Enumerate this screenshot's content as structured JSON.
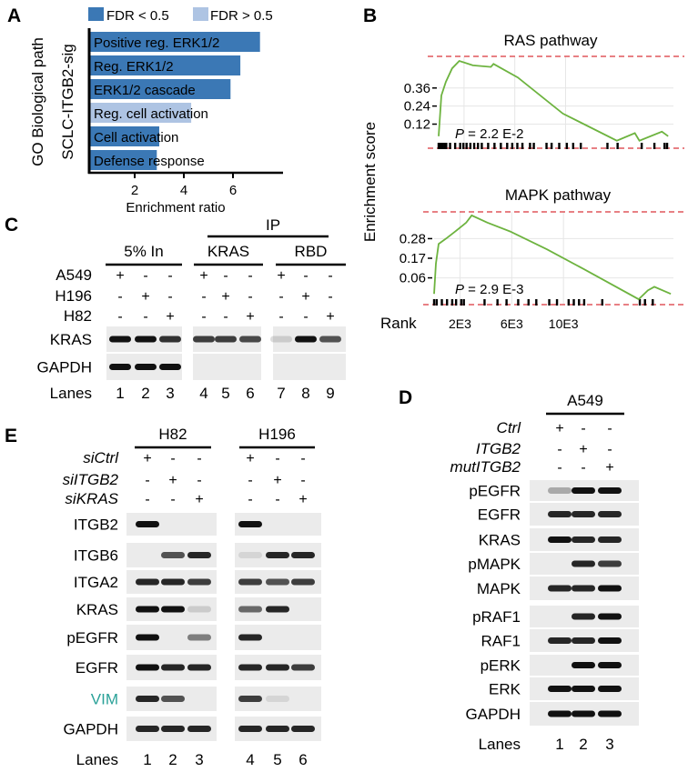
{
  "panels": {
    "A": {
      "letter": "A",
      "ylabel_line1": "GO Biological path",
      "ylabel_line2": "SCLC-ITGB2-sig",
      "legend": [
        {
          "label": "FDR < 0.5",
          "color": "#3b78b5"
        },
        {
          "label": "FDR > 0.5",
          "color": "#aec4e3"
        }
      ]
    },
    "B": {
      "letter": "B",
      "ylabel": "Enrichment score",
      "xlabel": "Rank"
    },
    "C": {
      "letter": "C",
      "ip_label": "IP",
      "groups": [
        "5% In",
        "KRAS",
        "RBD"
      ],
      "conditions": [
        {
          "label": "A549",
          "signs": [
            "+",
            "-",
            "-",
            "+",
            "-",
            "-",
            "+",
            "-",
            "-"
          ]
        },
        {
          "label": "H196",
          "signs": [
            "-",
            "+",
            "-",
            "-",
            "+",
            "-",
            "-",
            "+",
            "-"
          ]
        },
        {
          "label": "H82",
          "signs": [
            "-",
            "-",
            "+",
            "-",
            "-",
            "+",
            "-",
            "-",
            "+"
          ]
        }
      ],
      "blots": [
        {
          "label": "KRAS",
          "bands": [
            1,
            1,
            0.85,
            0.8,
            0.8,
            0.75,
            0.15,
            1,
            0.7
          ]
        },
        {
          "label": "GAPDH",
          "bands": [
            1,
            1,
            1,
            0,
            0,
            0,
            0,
            0,
            0
          ]
        }
      ],
      "lanes_label": "Lanes",
      "lanes": [
        "1",
        "2",
        "3",
        "4",
        "5",
        "6",
        "7",
        "8",
        "9"
      ]
    },
    "D": {
      "letter": "D",
      "groups": [
        "A549"
      ],
      "conditions": [
        {
          "label": "Ctrl",
          "signs": [
            "+",
            "-",
            "-"
          ]
        },
        {
          "label": "ITGB2",
          "signs": [
            "-",
            "+",
            "-"
          ]
        },
        {
          "label": "mutITGB2",
          "signs": [
            "-",
            "-",
            "+"
          ]
        }
      ],
      "blots": [
        {
          "label": "pEGFR",
          "bands": [
            0.3,
            1,
            1
          ]
        },
        {
          "label": "EGFR",
          "bands": [
            0.9,
            0.9,
            0.9
          ]
        },
        {
          "label": "KRAS",
          "bands": [
            1,
            0.9,
            0.9
          ]
        },
        {
          "label": "pMAPK",
          "bands": [
            0,
            0.9,
            0.8
          ]
        },
        {
          "label": "MAPK",
          "bands": [
            0.9,
            0.9,
            1
          ]
        },
        {
          "label": "pRAF1",
          "bands": [
            0,
            0.9,
            1
          ]
        },
        {
          "label": "RAF1",
          "bands": [
            0.9,
            0.9,
            1
          ]
        },
        {
          "label": "pERK",
          "bands": [
            0,
            1,
            1
          ]
        },
        {
          "label": "ERK",
          "bands": [
            1,
            1,
            1
          ]
        },
        {
          "label": "GAPDH",
          "bands": [
            1,
            1,
            1
          ]
        }
      ],
      "lanes_label": "Lanes",
      "lanes": [
        "1",
        "2",
        "3"
      ]
    },
    "E": {
      "letter": "E",
      "groups": [
        "H82",
        "H196"
      ],
      "conditions": [
        {
          "label": "siCtrl",
          "signs": [
            "+",
            "-",
            "-",
            "+",
            "-",
            "-"
          ]
        },
        {
          "label": "siITGB2",
          "signs": [
            "-",
            "+",
            "-",
            "-",
            "+",
            "-"
          ]
        },
        {
          "label": "siKRAS",
          "signs": [
            "-",
            "-",
            "+",
            "-",
            "-",
            "+"
          ]
        }
      ],
      "blots": [
        {
          "label": "ITGB2",
          "bands": [
            1,
            0,
            0,
            1,
            0,
            0
          ]
        },
        {
          "label": "ITGB6",
          "bands": [
            0,
            0.7,
            0.9,
            0.1,
            0.9,
            0.9
          ]
        },
        {
          "label": "ITGA2",
          "bands": [
            0.9,
            0.9,
            0.8,
            0.8,
            0.7,
            0.8
          ]
        },
        {
          "label": "KRAS",
          "bands": [
            1,
            1,
            0.15,
            0.6,
            0.9,
            0
          ]
        },
        {
          "label": "pEGFR",
          "bands": [
            1,
            0,
            0.5,
            0.9,
            0,
            0
          ]
        },
        {
          "label": "EGFR",
          "bands": [
            1,
            0.9,
            0.9,
            0.9,
            0.9,
            0.8
          ]
        },
        {
          "label": "VIM",
          "bands": [
            0.9,
            0.7,
            0,
            0.8,
            0.1,
            0
          ],
          "color": "#2aa198"
        },
        {
          "label": "GAPDH",
          "bands": [
            0.9,
            0.9,
            0.9,
            0.9,
            0.9,
            0.9
          ]
        }
      ],
      "lanes_label": "Lanes",
      "lanes": [
        "1",
        "2",
        "3",
        "4",
        "5",
        "6"
      ]
    }
  },
  "chart_data": [
    {
      "type": "bar",
      "orientation": "horizontal",
      "categories": [
        "Positive reg. ERK1/2",
        "Reg. ERK1/2",
        "ERK1/2 cascade",
        "Reg. cell activation",
        "Cell activation",
        "Defense response"
      ],
      "values": [
        7.1,
        6.3,
        5.9,
        4.3,
        3.0,
        2.9
      ],
      "fdr_group": [
        "FDR < 0.5",
        "FDR < 0.5",
        "FDR < 0.5",
        "FDR > 0.5",
        "FDR < 0.5",
        "FDR < 0.5"
      ],
      "xlabel": "Enrichment ratio",
      "xticks": [
        2,
        4,
        6
      ],
      "xlim": [
        0,
        8
      ],
      "legend": "top"
    },
    {
      "type": "line",
      "title": "RAS pathway",
      "annotation": {
        "p_label": "P",
        "p_value": " = 2.2 E-2"
      },
      "color": "#6db33f",
      "yticks": [
        "0.36",
        "0.24",
        "0.12"
      ],
      "ytick_values": [
        0.36,
        0.24,
        0.12
      ],
      "xticks": [
        "2E3",
        "6E3",
        "10E3"
      ],
      "xtick_values": [
        2000,
        6000,
        10000
      ],
      "ylim": [
        -0.04,
        0.57
      ],
      "xlim": [
        0,
        18500
      ],
      "dashed_lines": [
        0.57,
        -0.04
      ],
      "x": [
        0,
        213,
        567,
        1064,
        1631,
        2695,
        4113,
        4326,
        6241,
        9787,
        14043,
        15461,
        15816,
        17589,
        18085
      ],
      "y": [
        0.04,
        0.31,
        0.4,
        0.49,
        0.54,
        0.51,
        0.5,
        0.52,
        0.43,
        0.19,
        0.01,
        0.06,
        0.01,
        0.07,
        0.04
      ],
      "hits": [
        0,
        150,
        300,
        450,
        600,
        900,
        1300,
        1700,
        1950,
        2200,
        2500,
        2800,
        3100,
        3400,
        3900,
        4400,
        4900,
        5400,
        5800,
        6200,
        6600,
        7200,
        7500,
        8500,
        8900,
        9500,
        10100,
        10600,
        11200,
        13300,
        14100,
        16000,
        17000,
        17800,
        18000
      ]
    },
    {
      "type": "line",
      "title": "MAPK pathway",
      "annotation": {
        "p_label": "P",
        "p_value": " = 2.9 E-3"
      },
      "color": "#6db33f",
      "yticks": [
        "0.28",
        "0.17",
        "0.06"
      ],
      "ytick_values": [
        0.28,
        0.17,
        0.06
      ],
      "xticks": [
        "2E3",
        "6E3",
        "10E3"
      ],
      "xtick_values": [
        2000,
        6000,
        10000
      ],
      "ylim": [
        -0.09,
        0.43
      ],
      "xlim": [
        0,
        18500
      ],
      "dashed_lines": [
        0.43,
        -0.09
      ],
      "x": [
        0,
        142,
        355,
        922,
        1631,
        2482,
        2908,
        4113,
        5887,
        8723,
        11560,
        15816,
        16525,
        17021,
        18298
      ],
      "y": [
        -0.03,
        0.14,
        0.25,
        0.28,
        0.32,
        0.37,
        0.41,
        0.37,
        0.32,
        0.22,
        0.11,
        -0.06,
        -0.01,
        0.01,
        -0.03
      ],
      "hits": [
        0,
        200,
        600,
        1000,
        1400,
        1700,
        2100,
        2300,
        3900,
        4900,
        5600,
        6500,
        7300,
        7900,
        8900,
        9500,
        10400,
        10800,
        11200,
        11600,
        13000,
        15900,
        16300,
        16900
      ]
    }
  ]
}
